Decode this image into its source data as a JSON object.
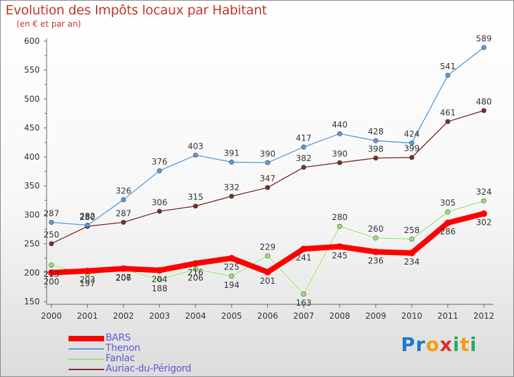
{
  "title": "Evolution des Impôts locaux par Habitant",
  "subtitle": "(en € et par an)",
  "logo": {
    "letters": [
      "P",
      "r",
      "o",
      "x",
      "i",
      "t",
      "i"
    ],
    "colors": [
      "#1f77d0",
      "#1f77d0",
      "#f39c12",
      "#d63031",
      "#27ae60",
      "#f39c12",
      "#27ae60"
    ]
  },
  "chart_data": {
    "type": "line",
    "categories": [
      "2000",
      "2001",
      "2002",
      "2003",
      "2004",
      "2005",
      "2006",
      "2007",
      "2008",
      "2009",
      "2010",
      "2011",
      "2012"
    ],
    "ylim": [
      150,
      600
    ],
    "yticks": [
      150,
      200,
      250,
      300,
      350,
      400,
      450,
      500,
      550,
      600
    ],
    "grid": false,
    "legend_position": "bottom-left",
    "series": [
      {
        "name": "BARS",
        "color": "#ff0000",
        "values": [
          200,
          203,
          207,
          204,
          216,
          225,
          201,
          241,
          245,
          236,
          234,
          286,
          302
        ]
      },
      {
        "name": "Thenon",
        "color": "#5b9bd5",
        "values": [
          287,
          282,
          326,
          376,
          403,
          391,
          390,
          417,
          440,
          428,
          424,
          541,
          589
        ]
      },
      {
        "name": "Fanlac",
        "color": "#9be07a",
        "values": [
          213,
          197,
          206,
          188,
          206,
          194,
          229,
          163,
          280,
          260,
          258,
          305,
          324
        ]
      },
      {
        "name": "Auriac-du-Périgord",
        "color": "#7a2b2b",
        "values": [
          250,
          280,
          287,
          306,
          315,
          332,
          347,
          382,
          390,
          398,
          399,
          461,
          480
        ]
      }
    ]
  }
}
